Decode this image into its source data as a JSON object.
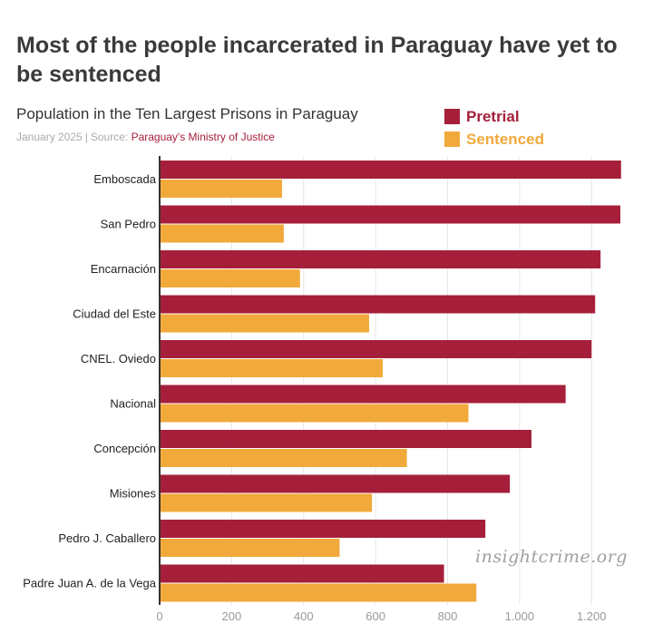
{
  "headline": "Most of the people incarcerated in Paraguay have yet to be sentenced",
  "subtitle": "Population in the Ten Largest Prisons in Paraguay",
  "source": {
    "date": "January 2025",
    "separator": "|",
    "prefix": "Source:",
    "name": "Paraguay's Ministry of Justice"
  },
  "watermark": "insightcrime.org",
  "colors": {
    "pretrial": "#a51f3a",
    "sentenced": "#f2a93b",
    "axis": "#333333",
    "grid": "#e6e6e6",
    "tick": "#999999"
  },
  "chart_data": {
    "type": "bar",
    "orientation": "horizontal",
    "title": "Population in the Ten Largest Prisons in Paraguay",
    "xlabel": "",
    "ylabel": "",
    "xlim": [
      0,
      1280
    ],
    "xticks": [
      0,
      200,
      400,
      600,
      800,
      1000,
      1200
    ],
    "xtick_labels": [
      "0",
      "200",
      "400",
      "600",
      "800",
      "1.000",
      "1.200"
    ],
    "grid": true,
    "legend_position": "top-right",
    "categories": [
      "Emboscada",
      "San Pedro",
      "Encarnación",
      "Ciudad del Este",
      "CNEL. Oviedo",
      "Nacional",
      "Concepción",
      "Misiones",
      "Pedro J. Caballero",
      "Padre Juan A. de la Vega"
    ],
    "series": [
      {
        "name": "Pretrial",
        "color": "#a51f3a",
        "values": [
          1282,
          1280,
          1225,
          1210,
          1200,
          1128,
          1033,
          973,
          905,
          790
        ]
      },
      {
        "name": "Sentenced",
        "color": "#f2a93b",
        "values": [
          340,
          345,
          390,
          582,
          620,
          858,
          687,
          590,
          500,
          880
        ]
      }
    ]
  }
}
